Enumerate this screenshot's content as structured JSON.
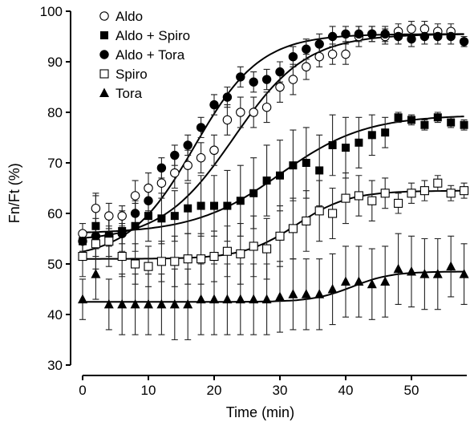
{
  "chart_data": {
    "type": "scatter",
    "xlabel": "Time (min)",
    "ylabel": "Fn/Ft (%)",
    "xlim": [
      -1,
      58.5
    ],
    "ylim": [
      28.5,
      100
    ],
    "xticks": [
      0,
      10,
      20,
      30,
      40,
      50
    ],
    "yticks": [
      30,
      40,
      50,
      60,
      70,
      80,
      90,
      100
    ],
    "grid": false,
    "legend_position": "top-left",
    "series": [
      {
        "name": "Aldo",
        "marker": "open-circle",
        "fit": {
          "base": 54.5,
          "top": 95.5,
          "half": 23,
          "slope": 5.5
        },
        "points": [
          {
            "x": 0,
            "y": 56,
            "err": 2
          },
          {
            "x": 2,
            "y": 61,
            "err": 3
          },
          {
            "x": 4,
            "y": 59.5,
            "err": 2.5
          },
          {
            "x": 6,
            "y": 59.5,
            "err": 2
          },
          {
            "x": 8,
            "y": 63.5,
            "err": 3
          },
          {
            "x": 10,
            "y": 65,
            "err": 3
          },
          {
            "x": 12,
            "y": 66,
            "err": 3
          },
          {
            "x": 14,
            "y": 68,
            "err": 3
          },
          {
            "x": 16,
            "y": 69.5,
            "err": 3
          },
          {
            "x": 18,
            "y": 71,
            "err": 3
          },
          {
            "x": 20,
            "y": 72.5,
            "err": 3
          },
          {
            "x": 22,
            "y": 78.5,
            "err": 3
          },
          {
            "x": 24,
            "y": 80,
            "err": 3
          },
          {
            "x": 26,
            "y": 80,
            "err": 3
          },
          {
            "x": 28,
            "y": 81,
            "err": 3
          },
          {
            "x": 30,
            "y": 85,
            "err": 3
          },
          {
            "x": 32,
            "y": 86.5,
            "err": 3
          },
          {
            "x": 34,
            "y": 89,
            "err": 2.5
          },
          {
            "x": 36,
            "y": 91,
            "err": 2
          },
          {
            "x": 38,
            "y": 91.5,
            "err": 2
          },
          {
            "x": 40,
            "y": 91.5,
            "err": 2
          },
          {
            "x": 42,
            "y": 95,
            "err": 2
          },
          {
            "x": 44,
            "y": 95.5,
            "err": 1.5
          },
          {
            "x": 46,
            "y": 95,
            "err": 1.5
          },
          {
            "x": 48,
            "y": 96,
            "err": 1.5
          },
          {
            "x": 50,
            "y": 96.5,
            "err": 1.5
          },
          {
            "x": 52,
            "y": 96.5,
            "err": 1.5
          },
          {
            "x": 54,
            "y": 96,
            "err": 1.5
          },
          {
            "x": 56,
            "y": 96,
            "err": 1.5
          }
        ]
      },
      {
        "name": "Aldo + Spiro",
        "marker": "filled-square",
        "fit": {
          "base": 56,
          "top": 79.5,
          "half": 30,
          "slope": 6.5
        },
        "points": [
          {
            "x": 0,
            "y": 54.5,
            "err": 2
          },
          {
            "x": 2,
            "y": 57.5,
            "err": 6
          },
          {
            "x": 4,
            "y": 55.5,
            "err": 4
          },
          {
            "x": 6,
            "y": 56.5,
            "err": 4
          },
          {
            "x": 8,
            "y": 57.5,
            "err": 5
          },
          {
            "x": 10,
            "y": 59.5,
            "err": 5
          },
          {
            "x": 12,
            "y": 59,
            "err": 5
          },
          {
            "x": 14,
            "y": 59.5,
            "err": 5
          },
          {
            "x": 16,
            "y": 61,
            "err": 5
          },
          {
            "x": 18,
            "y": 61.5,
            "err": 6
          },
          {
            "x": 20,
            "y": 61.5,
            "err": 6
          },
          {
            "x": 22,
            "y": 61.5,
            "err": 7
          },
          {
            "x": 24,
            "y": 62.5,
            "err": 7
          },
          {
            "x": 26,
            "y": 64,
            "err": 7
          },
          {
            "x": 28,
            "y": 66.5,
            "err": 7
          },
          {
            "x": 30,
            "y": 67.5,
            "err": 7
          },
          {
            "x": 32,
            "y": 69.5,
            "err": 7
          },
          {
            "x": 34,
            "y": 70,
            "err": 7
          },
          {
            "x": 36,
            "y": 68.5,
            "err": 7
          },
          {
            "x": 38,
            "y": 73.5,
            "err": 6
          },
          {
            "x": 40,
            "y": 73,
            "err": 6
          },
          {
            "x": 42,
            "y": 74,
            "err": 5
          },
          {
            "x": 44,
            "y": 75.5,
            "err": 4
          },
          {
            "x": 46,
            "y": 76,
            "err": 3
          },
          {
            "x": 48,
            "y": 79,
            "err": 1
          },
          {
            "x": 50,
            "y": 78.5,
            "err": 1
          },
          {
            "x": 52,
            "y": 77.5,
            "err": 1
          },
          {
            "x": 54,
            "y": 79,
            "err": 1
          },
          {
            "x": 56,
            "y": 78,
            "err": 1
          },
          {
            "x": 58,
            "y": 77.5,
            "err": 1
          }
        ]
      },
      {
        "name": "Aldo + Tora",
        "marker": "filled-circle",
        "fit": {
          "base": 51,
          "top": 95.5,
          "half": 17,
          "slope": 5
        },
        "points": [
          {
            "x": 0,
            "y": 54.5,
            "err": 2
          },
          {
            "x": 2,
            "y": 55.5,
            "err": 2
          },
          {
            "x": 4,
            "y": 55.5,
            "err": 2
          },
          {
            "x": 6,
            "y": 56,
            "err": 2
          },
          {
            "x": 8,
            "y": 60,
            "err": 2
          },
          {
            "x": 10,
            "y": 62.5,
            "err": 2
          },
          {
            "x": 12,
            "y": 69,
            "err": 2
          },
          {
            "x": 14,
            "y": 71.5,
            "err": 2
          },
          {
            "x": 16,
            "y": 73.5,
            "err": 2
          },
          {
            "x": 18,
            "y": 77,
            "err": 2
          },
          {
            "x": 20,
            "y": 81.5,
            "err": 2
          },
          {
            "x": 22,
            "y": 83,
            "err": 2
          },
          {
            "x": 24,
            "y": 87,
            "err": 2
          },
          {
            "x": 26,
            "y": 86,
            "err": 2
          },
          {
            "x": 28,
            "y": 86.5,
            "err": 2
          },
          {
            "x": 30,
            "y": 88,
            "err": 2
          },
          {
            "x": 32,
            "y": 91,
            "err": 2
          },
          {
            "x": 34,
            "y": 92.5,
            "err": 2
          },
          {
            "x": 36,
            "y": 93.5,
            "err": 2
          },
          {
            "x": 38,
            "y": 95,
            "err": 2
          },
          {
            "x": 40,
            "y": 95.5,
            "err": 1.5
          },
          {
            "x": 42,
            "y": 95.5,
            "err": 1.5
          },
          {
            "x": 44,
            "y": 95.5,
            "err": 1.5
          },
          {
            "x": 46,
            "y": 95.5,
            "err": 1.5
          },
          {
            "x": 48,
            "y": 95,
            "err": 1.5
          },
          {
            "x": 50,
            "y": 94.5,
            "err": 1.5
          },
          {
            "x": 52,
            "y": 95,
            "err": 1.5
          },
          {
            "x": 54,
            "y": 95,
            "err": 1.5
          },
          {
            "x": 56,
            "y": 95,
            "err": 1.5
          },
          {
            "x": 58,
            "y": 94,
            "err": 1
          }
        ]
      },
      {
        "name": "Spiro",
        "marker": "open-square",
        "fit": {
          "base": 51,
          "top": 64.5,
          "half": 32.5,
          "slope": 4
        },
        "points": [
          {
            "x": 0,
            "y": 51.5,
            "err": 4
          },
          {
            "x": 2,
            "y": 54,
            "err": 5
          },
          {
            "x": 4,
            "y": 54.5,
            "err": 5
          },
          {
            "x": 6,
            "y": 51.5,
            "err": 4
          },
          {
            "x": 8,
            "y": 50,
            "err": 4
          },
          {
            "x": 10,
            "y": 49.5,
            "err": 4
          },
          {
            "x": 12,
            "y": 50.5,
            "err": 4
          },
          {
            "x": 14,
            "y": 50.5,
            "err": 5
          },
          {
            "x": 16,
            "y": 51,
            "err": 5
          },
          {
            "x": 18,
            "y": 51,
            "err": 5
          },
          {
            "x": 20,
            "y": 51.5,
            "err": 5
          },
          {
            "x": 22,
            "y": 52.5,
            "err": 5
          },
          {
            "x": 24,
            "y": 52,
            "err": 6
          },
          {
            "x": 26,
            "y": 53.5,
            "err": 6
          },
          {
            "x": 28,
            "y": 53,
            "err": 6
          },
          {
            "x": 30,
            "y": 55.5,
            "err": 6
          },
          {
            "x": 32,
            "y": 57,
            "err": 6
          },
          {
            "x": 34,
            "y": 58.5,
            "err": 6
          },
          {
            "x": 36,
            "y": 60.5,
            "err": 6
          },
          {
            "x": 38,
            "y": 60,
            "err": 5
          },
          {
            "x": 40,
            "y": 63,
            "err": 5
          },
          {
            "x": 42,
            "y": 63.5,
            "err": 4
          },
          {
            "x": 44,
            "y": 62.5,
            "err": 4
          },
          {
            "x": 46,
            "y": 64,
            "err": 3
          },
          {
            "x": 48,
            "y": 62,
            "err": 2
          },
          {
            "x": 50,
            "y": 64,
            "err": 2
          },
          {
            "x": 52,
            "y": 64.5,
            "err": 2
          },
          {
            "x": 54,
            "y": 66,
            "err": 1.5
          },
          {
            "x": 56,
            "y": 64,
            "err": 1.5
          },
          {
            "x": 58,
            "y": 64.5,
            "err": 1.5
          }
        ]
      },
      {
        "name": "Tora",
        "marker": "filled-triangle",
        "fit": {
          "base": 42.5,
          "top": 48.5,
          "half": 41,
          "slope": 3
        },
        "points": [
          {
            "x": 0,
            "y": 43,
            "err": 4
          },
          {
            "x": 2,
            "y": 48,
            "err": 5
          },
          {
            "x": 4,
            "y": 42,
            "err": 5
          },
          {
            "x": 6,
            "y": 42,
            "err": 6
          },
          {
            "x": 8,
            "y": 42,
            "err": 6
          },
          {
            "x": 10,
            "y": 42,
            "err": 6
          },
          {
            "x": 12,
            "y": 42,
            "err": 6
          },
          {
            "x": 14,
            "y": 42,
            "err": 7
          },
          {
            "x": 16,
            "y": 42,
            "err": 7
          },
          {
            "x": 18,
            "y": 43,
            "err": 7
          },
          {
            "x": 20,
            "y": 43,
            "err": 7
          },
          {
            "x": 22,
            "y": 43,
            "err": 7
          },
          {
            "x": 24,
            "y": 43,
            "err": 7
          },
          {
            "x": 26,
            "y": 43,
            "err": 7
          },
          {
            "x": 28,
            "y": 43,
            "err": 7
          },
          {
            "x": 30,
            "y": 43.5,
            "err": 7
          },
          {
            "x": 32,
            "y": 44,
            "err": 7
          },
          {
            "x": 34,
            "y": 44,
            "err": 7
          },
          {
            "x": 36,
            "y": 44,
            "err": 7
          },
          {
            "x": 38,
            "y": 45,
            "err": 7
          },
          {
            "x": 40,
            "y": 46.5,
            "err": 7
          },
          {
            "x": 42,
            "y": 46.5,
            "err": 7
          },
          {
            "x": 44,
            "y": 46,
            "err": 7
          },
          {
            "x": 46,
            "y": 46.5,
            "err": 7
          },
          {
            "x": 48,
            "y": 49,
            "err": 7
          },
          {
            "x": 50,
            "y": 48.5,
            "err": 7
          },
          {
            "x": 52,
            "y": 48,
            "err": 7
          },
          {
            "x": 54,
            "y": 48,
            "err": 7
          },
          {
            "x": 56,
            "y": 49.5,
            "err": 6
          },
          {
            "x": 58,
            "y": 48,
            "err": 6
          }
        ]
      }
    ]
  }
}
